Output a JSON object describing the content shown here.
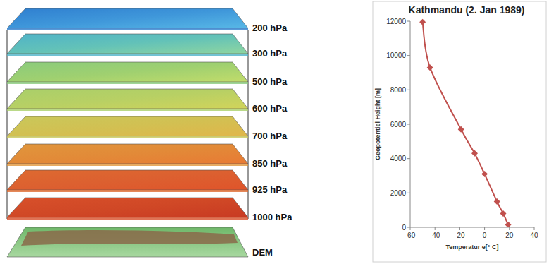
{
  "diagram": {
    "levels": [
      "200 hPa",
      "300 hPa",
      "500 hPa",
      "600 hPa",
      "700 hPa",
      "850 hPa",
      "925 hPa",
      "1000 hPa"
    ],
    "base": "DEM"
  },
  "chart_data": {
    "type": "line",
    "title": "Kathmandu (2. Jan 1989)",
    "x_label": "Temperatur e[° C]",
    "y_label": "Geopotentiel Height [m]",
    "x": [
      -50,
      -44,
      -19,
      -8,
      0,
      10,
      15,
      19
    ],
    "series": [
      {
        "color": "#c0504d",
        "marker": "diamond",
        "line_style": "solid",
        "values": [
          11950,
          9300,
          5700,
          4300,
          3100,
          1500,
          800,
          150
        ]
      }
    ],
    "xlim": [
      -60,
      40
    ],
    "xticks": [
      -60,
      -40,
      -20,
      0,
      20,
      40
    ],
    "ylim": [
      0,
      12000
    ],
    "yticks": [
      0,
      2000,
      4000,
      6000,
      8000,
      10000,
      12000
    ],
    "grid": false
  }
}
